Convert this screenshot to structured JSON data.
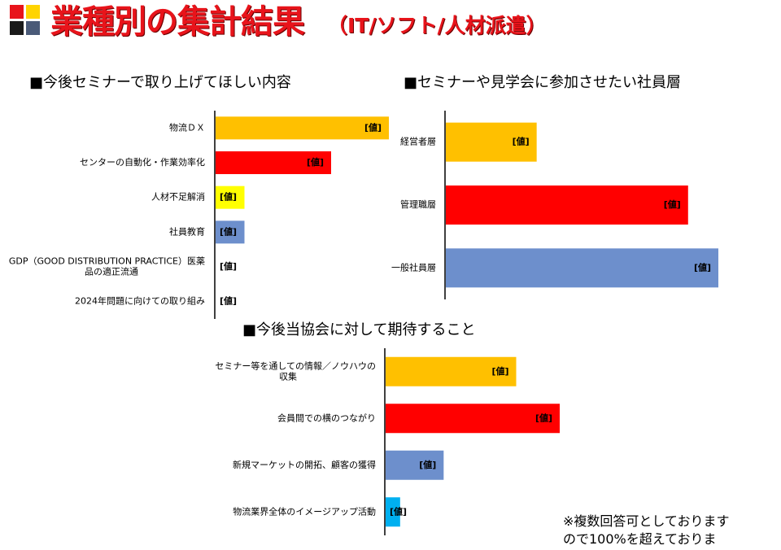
{
  "header": {
    "title": "業種別の集計結果",
    "subtitle": "（IT/ソフト/人材派遣）",
    "logo_colors": [
      "#e8141b",
      "#ffd400",
      "#1a1a1a",
      "#4a5a78"
    ]
  },
  "value_label": "[値]",
  "footnote": [
    "※複数回答可としております",
    "ので100%を超えておりま"
  ],
  "colors": {
    "orange": "#ffc000",
    "red": "#ff0000",
    "yellow": "#ffff00",
    "blue": "#6d8fcc",
    "cyan": "#00b0f0",
    "axis": "#000000"
  },
  "chart_data": [
    {
      "type": "bar",
      "orientation": "horizontal",
      "title": "■今後セミナーで取り上げてほしい内容",
      "categories": [
        "物流ＤＸ",
        "センターの自動化・作業効率化",
        "人材不足解消",
        "社員教育",
        "GDP（GOOD DISTRIBUTION PRACTICE）医薬品の適正流通",
        "2024年問題に向けての取り組み"
      ],
      "category_lines": [
        [
          "物流ＤＸ"
        ],
        [
          "センターの自動化・作業効率化"
        ],
        [
          "人材不足解消"
        ],
        [
          "社員教育"
        ],
        [
          "GDP（GOOD DISTRIBUTION PRACTICE）医薬",
          "品の適正流通"
        ],
        [
          "2024年問題に向けての取り組み"
        ]
      ],
      "values": [
        60,
        40,
        10,
        10,
        0,
        0
      ],
      "colors": [
        "#ffc000",
        "#ff0000",
        "#ffff00",
        "#6d8fcc",
        "#ffffff",
        "#ffffff"
      ],
      "data_labels": [
        "[値]",
        "[値]",
        "[値]",
        "[値]",
        "[値]",
        "[値]"
      ],
      "xlim": [
        0,
        60
      ],
      "legend": "none",
      "grid": false
    },
    {
      "type": "bar",
      "orientation": "horizontal",
      "title": "■セミナーや見学会に参加させたい社員層",
      "categories": [
        "経営者層",
        "管理職層",
        "一般社員層"
      ],
      "category_lines": [
        [
          "経営者層"
        ],
        [
          "管理職層"
        ],
        [
          "一般社員層"
        ]
      ],
      "values": [
        30,
        80,
        90
      ],
      "colors": [
        "#ffc000",
        "#ff0000",
        "#6d8fcc"
      ],
      "data_labels": [
        "[値]",
        "[値]",
        "[値]"
      ],
      "xlim": [
        0,
        90
      ],
      "legend": "none",
      "grid": false
    },
    {
      "type": "bar",
      "orientation": "horizontal",
      "title": "■今後当協会に対して期待すること",
      "categories": [
        "セミナー等を通しての情報／ノウハウの収集",
        "会員間での横のつながり",
        "新規マーケットの開拓、顧客の獲得",
        "物流業界全体のイメージアップ活動"
      ],
      "category_lines": [
        [
          "セミナー等を通しての情報／ノウハウの",
          "収集"
        ],
        [
          "会員間での横のつながり"
        ],
        [
          "新規マーケットの開拓、顧客の獲得"
        ],
        [
          "物流業界全体のイメージアップ活動"
        ]
      ],
      "values": [
        45,
        60,
        20,
        5
      ],
      "colors": [
        "#ffc000",
        "#ff0000",
        "#6d8fcc",
        "#00b0f0"
      ],
      "data_labels": [
        "[値]",
        "[値]",
        "[値]",
        "[値]"
      ],
      "xlim": [
        0,
        60
      ],
      "legend": "none",
      "grid": false
    }
  ]
}
